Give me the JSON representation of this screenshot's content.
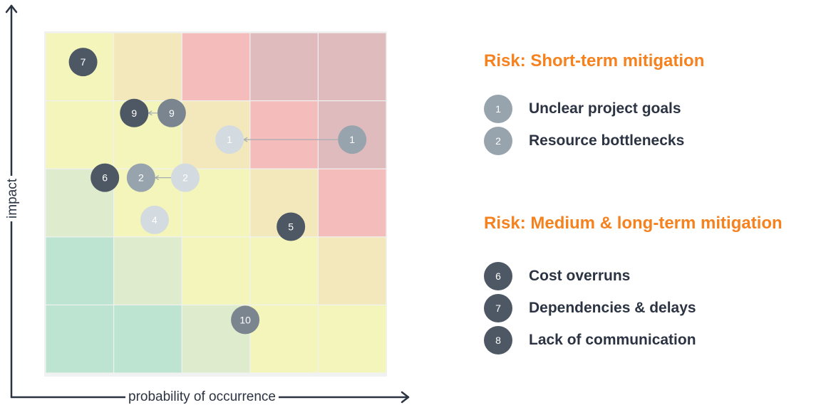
{
  "axes": {
    "x_label": "probability of occurrence",
    "y_label": "impact"
  },
  "grid": {
    "rows": 5,
    "cols": 5,
    "cell_colors": [
      [
        "#f4f5bb",
        "#f3e8bb",
        "#f5bcbc",
        "#e0bbbd",
        "#e0bbbd"
      ],
      [
        "#f4f5bb",
        "#f4f5bb",
        "#f3e8bb",
        "#f5bcbc",
        "#e0bbbd"
      ],
      [
        "#dfebcd",
        "#f4f5bb",
        "#f4f5bb",
        "#f3e8bb",
        "#f5bcbc"
      ],
      [
        "#bde4d0",
        "#dfebcd",
        "#f4f5bb",
        "#f4f5bb",
        "#f3e8bb"
      ],
      [
        "#bde4d0",
        "#bde4d0",
        "#dfebcd",
        "#f4f5bb",
        "#f4f5bb"
      ]
    ]
  },
  "risks": [
    {
      "label": "7",
      "col": 1.55,
      "row": 1.43,
      "color": "#4e5865"
    },
    {
      "label": "9",
      "col": 2.3,
      "row": 2.18,
      "color": "#4e5865"
    },
    {
      "label": "9",
      "col": 2.85,
      "row": 2.18,
      "color": "#7b858f"
    },
    {
      "label": "1",
      "col": 3.7,
      "row": 2.57,
      "color": "#d3dbe0"
    },
    {
      "label": "1",
      "col": 5.5,
      "row": 2.57,
      "color": "#97a4ad"
    },
    {
      "label": "6",
      "col": 1.87,
      "row": 3.13,
      "color": "#4e5865"
    },
    {
      "label": "2",
      "col": 2.4,
      "row": 3.13,
      "color": "#97a4ad"
    },
    {
      "label": "2",
      "col": 3.05,
      "row": 3.13,
      "color": "#d3dbe0"
    },
    {
      "label": "4",
      "col": 2.6,
      "row": 3.75,
      "color": "#d3dbe0"
    },
    {
      "label": "5",
      "col": 4.6,
      "row": 3.85,
      "color": "#4e5865"
    },
    {
      "label": "10",
      "col": 3.93,
      "row": 5.22,
      "color": "#7b858f"
    }
  ],
  "links": [
    {
      "from": 2,
      "to": 1
    },
    {
      "from": 4,
      "to": 3
    },
    {
      "from": 7,
      "to": 6
    }
  ],
  "legend": {
    "short_term": {
      "heading": "Risk: Short-term mitigation",
      "items": [
        {
          "number": "1",
          "text": "Unclear project goals",
          "color": "#97a4ad"
        },
        {
          "number": "2",
          "text": "Resource bottlenecks",
          "color": "#97a4ad"
        }
      ]
    },
    "long_term": {
      "heading": "Risk: Medium & long-term mitigation",
      "items": [
        {
          "number": "6",
          "text": "Cost overruns",
          "color": "#4e5865"
        },
        {
          "number": "7",
          "text": "Dependencies & delays",
          "color": "#4e5865"
        },
        {
          "number": "8",
          "text": "Lack of communication",
          "color": "#4e5865"
        }
      ]
    }
  }
}
